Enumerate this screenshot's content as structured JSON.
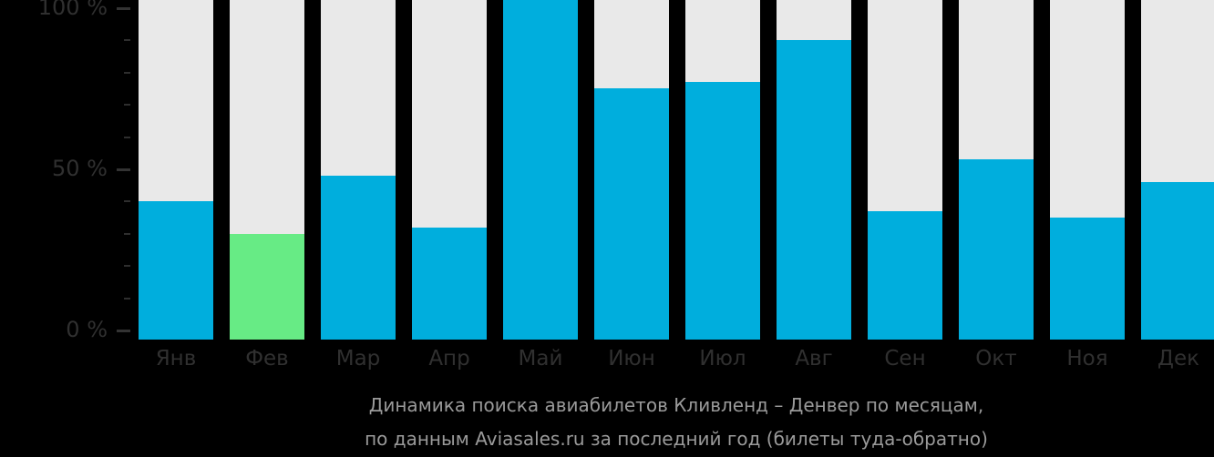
{
  "chart_data": {
    "type": "bar",
    "categories": [
      "Янв",
      "Фев",
      "Мар",
      "Апр",
      "Май",
      "Июн",
      "Июл",
      "Авг",
      "Сен",
      "Окт",
      "Ноя",
      "Дек"
    ],
    "values": [
      40,
      30,
      48,
      32,
      100,
      75,
      77,
      90,
      37,
      53,
      35,
      46
    ],
    "highlight_index": 1,
    "title": "Динамика поиска авиабилетов Кливленд – Денвер по месяцам,",
    "subtitle": "по данным Aviasales.ru за последний год (билеты туда-обратно)",
    "xlabel": "",
    "ylabel": "",
    "ylim": [
      0,
      100
    ],
    "grid": false,
    "legend": "none",
    "y_tick_labels": [
      {
        "pct": 100,
        "text": "100 %"
      },
      {
        "pct": 50,
        "text": "50 %"
      },
      {
        "pct": 0,
        "text": "0 %"
      }
    ],
    "minor_tick_step_pct": 10,
    "colors": {
      "bar": "#00aedd",
      "highlight_bar": "#67eb85",
      "column_background": "#e9e9e9",
      "page_background": "#000000",
      "axis_text": "#303030",
      "caption_text": "#9a9a9a"
    }
  },
  "caption": {
    "line1": "Динамика поиска авиабилетов Кливленд – Денвер по месяцам,",
    "line2": "по данным Aviasales.ru за последний год (билеты туда-обратно)"
  }
}
